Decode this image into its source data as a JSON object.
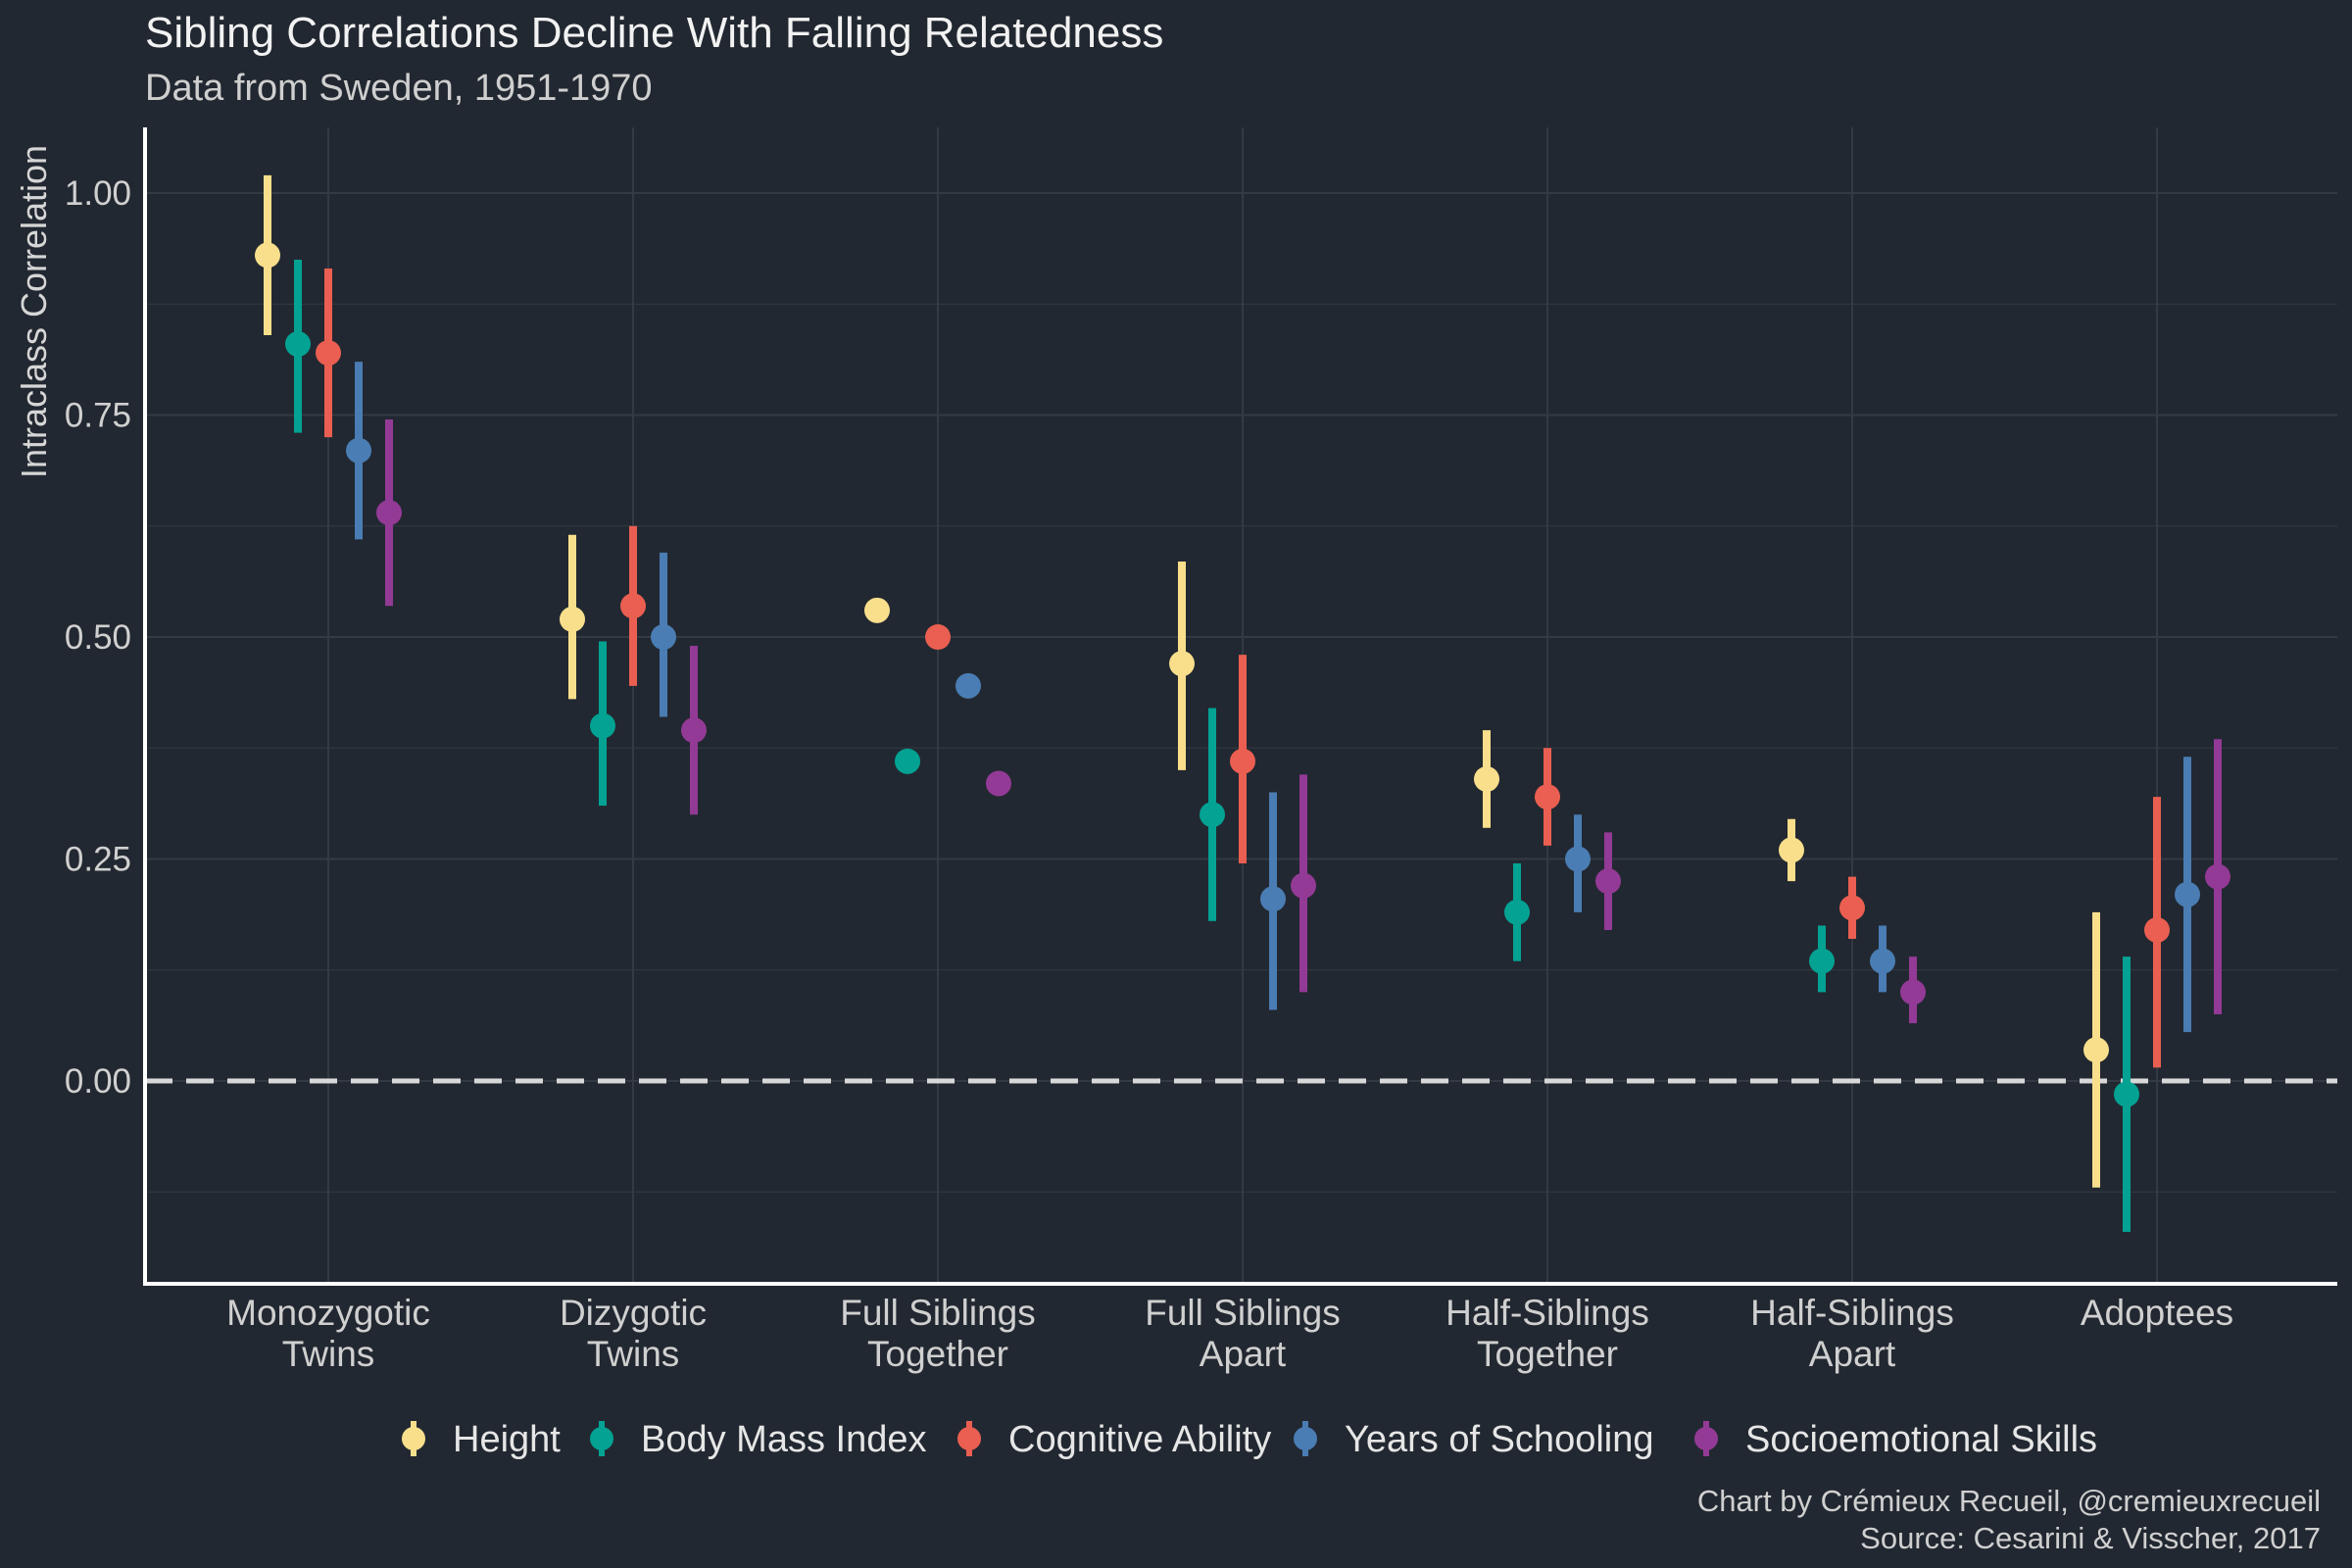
{
  "title": "Sibling Correlations Decline With Falling Relatedness",
  "subtitle": "Data from Sweden, 1951-1970",
  "caption": [
    "Chart by Crémieux Recueil, @cremieuxrecueil",
    "Source: Cesarini & Visscher, 2017"
  ],
  "colors": {
    "background": "#222831",
    "grid": "#343a43",
    "axis": "#ffffff",
    "zero_line": "#d8d8d8"
  },
  "chart_data": {
    "type": "scatter",
    "xlabel": "",
    "ylabel": "Intraclass Correlation",
    "ylim": [
      -0.22,
      1.08
    ],
    "yticks": [
      0,
      0.25,
      0.5,
      0.75,
      1.0
    ],
    "ytick_labels": [
      "0.00",
      "0.25",
      "0.50",
      "0.75",
      "1.00"
    ],
    "grid": true,
    "reference_line": {
      "y": 0,
      "style": "dashed"
    },
    "legend_position": "bottom",
    "categories": [
      [
        "Monozygotic",
        "Twins"
      ],
      [
        "Dizygotic",
        "Twins"
      ],
      [
        "Full Siblings",
        "Together"
      ],
      [
        "Full Siblings",
        "Apart"
      ],
      [
        "Half-Siblings",
        "Together"
      ],
      [
        "Half-Siblings",
        "Apart"
      ],
      [
        "Adoptees"
      ]
    ],
    "series": [
      {
        "name": "Height",
        "color": "#f9df8c",
        "values": [
          0.93,
          0.52,
          0.53,
          0.47,
          0.34,
          0.26,
          0.035
        ],
        "lower": [
          0.84,
          0.43,
          null,
          0.35,
          0.285,
          0.225,
          -0.12
        ],
        "upper": [
          1.02,
          0.615,
          null,
          0.585,
          0.395,
          0.295,
          0.19
        ]
      },
      {
        "name": "Body Mass Index",
        "color": "#03a293",
        "values": [
          0.83,
          0.4,
          0.36,
          0.3,
          0.19,
          0.135,
          -0.015
        ],
        "lower": [
          0.73,
          0.31,
          null,
          0.18,
          0.135,
          0.1,
          -0.17
        ],
        "upper": [
          0.925,
          0.495,
          null,
          0.42,
          0.245,
          0.175,
          0.14
        ]
      },
      {
        "name": "Cognitive Ability",
        "color": "#ea5f51",
        "values": [
          0.82,
          0.535,
          0.5,
          0.36,
          0.32,
          0.195,
          0.17
        ],
        "lower": [
          0.725,
          0.445,
          null,
          0.245,
          0.265,
          0.16,
          0.015
        ],
        "upper": [
          0.915,
          0.625,
          null,
          0.48,
          0.375,
          0.23,
          0.32
        ]
      },
      {
        "name": "Years of Schooling",
        "color": "#4a7db3",
        "values": [
          0.71,
          0.5,
          0.445,
          0.205,
          0.25,
          0.135,
          0.21
        ],
        "lower": [
          0.61,
          0.41,
          null,
          0.08,
          0.19,
          0.1,
          0.055
        ],
        "upper": [
          0.81,
          0.595,
          null,
          0.325,
          0.3,
          0.175,
          0.365
        ]
      },
      {
        "name": "Socioemotional Skills",
        "color": "#933a96",
        "values": [
          0.64,
          0.395,
          0.335,
          0.22,
          0.225,
          0.1,
          0.23
        ],
        "lower": [
          0.535,
          0.3,
          null,
          0.1,
          0.17,
          0.065,
          0.075
        ],
        "upper": [
          0.745,
          0.49,
          null,
          0.345,
          0.28,
          0.14,
          0.385
        ]
      }
    ]
  }
}
